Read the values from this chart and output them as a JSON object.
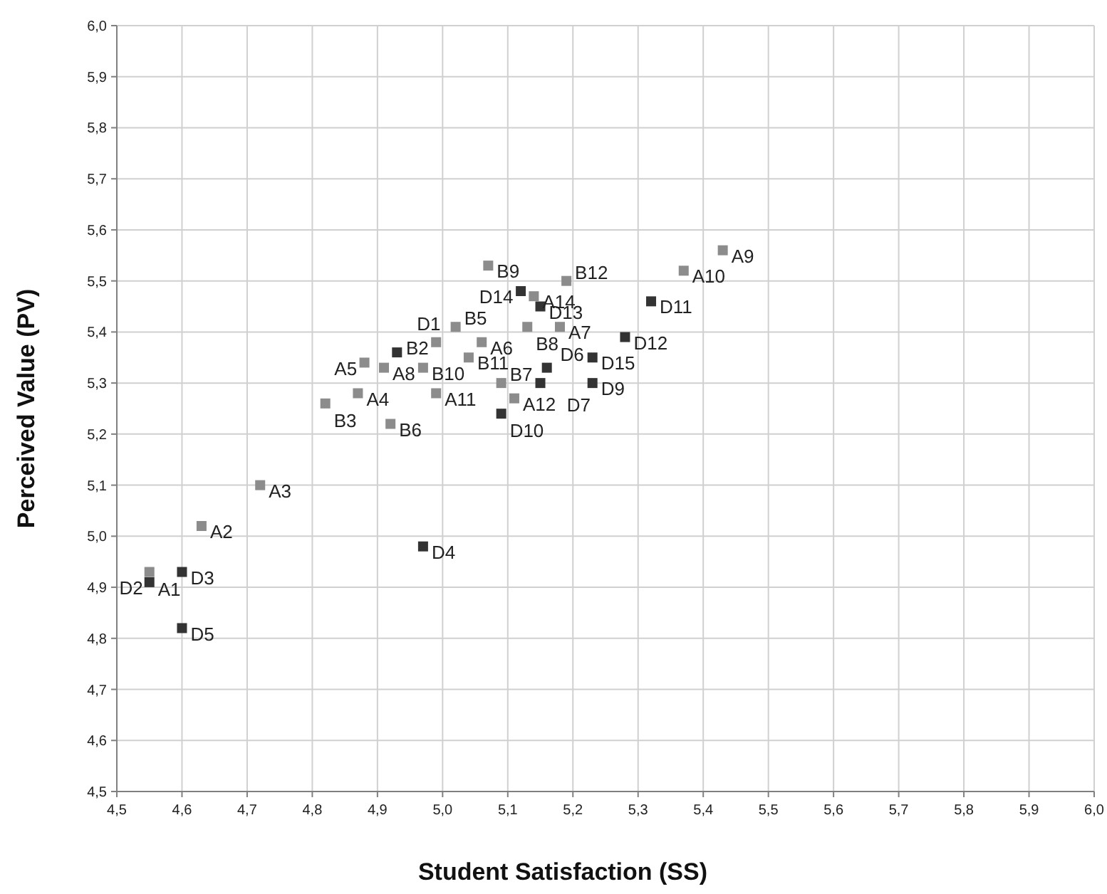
{
  "chart_data": {
    "type": "scatter",
    "xlabel": "Student Satisfaction (SS)",
    "ylabel": "Perceived Value (PV)",
    "xlim": [
      4.5,
      6.0
    ],
    "ylim": [
      4.5,
      6.0
    ],
    "xticks": [
      {
        "value": 4.5,
        "label": "4,5"
      },
      {
        "value": 4.6,
        "label": "4,6"
      },
      {
        "value": 4.7,
        "label": "4,7"
      },
      {
        "value": 4.8,
        "label": "4,8"
      },
      {
        "value": 4.9,
        "label": "4,9"
      },
      {
        "value": 5.0,
        "label": "5,0"
      },
      {
        "value": 5.1,
        "label": "5,1"
      },
      {
        "value": 5.2,
        "label": "5,2"
      },
      {
        "value": 5.3,
        "label": "5,3"
      },
      {
        "value": 5.4,
        "label": "5,4"
      },
      {
        "value": 5.5,
        "label": "5,5"
      },
      {
        "value": 5.6,
        "label": "5,6"
      },
      {
        "value": 5.7,
        "label": "5,7"
      },
      {
        "value": 5.8,
        "label": "5,8"
      },
      {
        "value": 5.9,
        "label": "5,9"
      },
      {
        "value": 6.0,
        "label": "6,0"
      }
    ],
    "yticks": [
      {
        "value": 4.5,
        "label": "4,5"
      },
      {
        "value": 4.6,
        "label": "4,6"
      },
      {
        "value": 4.7,
        "label": "4,7"
      },
      {
        "value": 4.8,
        "label": "4,8"
      },
      {
        "value": 4.9,
        "label": "4,9"
      },
      {
        "value": 5.0,
        "label": "5,0"
      },
      {
        "value": 5.1,
        "label": "5,1"
      },
      {
        "value": 5.2,
        "label": "5,2"
      },
      {
        "value": 5.3,
        "label": "5,3"
      },
      {
        "value": 5.4,
        "label": "5,4"
      },
      {
        "value": 5.5,
        "label": "5,5"
      },
      {
        "value": 5.6,
        "label": "5,6"
      },
      {
        "value": 5.7,
        "label": "5,7"
      },
      {
        "value": 5.8,
        "label": "5,8"
      },
      {
        "value": 5.9,
        "label": "5,9"
      },
      {
        "value": 6.0,
        "label": "6,0"
      }
    ],
    "grid": true,
    "marker": "square",
    "series": [
      {
        "color": "#8c8c8c",
        "x": [
          4.55,
          4.63,
          4.72,
          4.87,
          4.88,
          5.06,
          5.18,
          4.91,
          5.43,
          5.37,
          4.99,
          5.11,
          5.14
        ],
        "values": [
          4.93,
          5.02,
          5.1,
          5.28,
          5.34,
          5.38,
          5.41,
          5.33,
          5.56,
          5.52,
          5.28,
          5.27,
          5.47
        ]
      },
      {
        "color": "#8c8c8c",
        "x": [
          4.99,
          4.82,
          5.02,
          4.92,
          5.09,
          5.13,
          5.07,
          4.97,
          5.04,
          5.19
        ],
        "values": [
          5.38,
          5.26,
          5.41,
          5.22,
          5.3,
          5.41,
          5.53,
          5.33,
          5.35,
          5.5
        ]
      },
      {
        "color": "#333333",
        "x": [
          4.93,
          4.55,
          4.6,
          4.97,
          4.6,
          5.15,
          5.16,
          5.23,
          5.09,
          5.32,
          5.28,
          5.15,
          5.12,
          5.23
        ],
        "values": [
          5.36,
          4.91,
          4.93,
          4.98,
          4.82,
          5.3,
          5.33,
          5.3,
          5.24,
          5.46,
          5.39,
          5.45,
          5.48,
          5.35
        ]
      }
    ],
    "annotations": [
      {
        "text": "A1",
        "x": 4.55,
        "y": 4.93
      },
      {
        "text": "A2",
        "x": 4.63,
        "y": 5.02
      },
      {
        "text": "A3",
        "x": 4.72,
        "y": 5.1
      },
      {
        "text": "A4",
        "x": 4.87,
        "y": 5.28
      },
      {
        "text": "A5",
        "x": 4.88,
        "y": 5.34
      },
      {
        "text": "A6",
        "x": 5.06,
        "y": 5.38
      },
      {
        "text": "A7",
        "x": 5.18,
        "y": 5.41
      },
      {
        "text": "A8",
        "x": 4.91,
        "y": 5.33
      },
      {
        "text": "A9",
        "x": 5.43,
        "y": 5.56
      },
      {
        "text": "A10",
        "x": 5.37,
        "y": 5.52
      },
      {
        "text": "A11",
        "x": 4.99,
        "y": 5.28
      },
      {
        "text": "A12",
        "x": 5.11,
        "y": 5.27
      },
      {
        "text": "A14",
        "x": 5.14,
        "y": 5.47
      },
      {
        "text": "B2",
        "x": 4.99,
        "y": 5.38
      },
      {
        "text": "B3",
        "x": 4.82,
        "y": 5.26
      },
      {
        "text": "B5",
        "x": 5.02,
        "y": 5.41
      },
      {
        "text": "B6",
        "x": 4.92,
        "y": 5.22
      },
      {
        "text": "B7",
        "x": 5.09,
        "y": 5.3
      },
      {
        "text": "B8",
        "x": 5.13,
        "y": 5.41
      },
      {
        "text": "B9",
        "x": 5.07,
        "y": 5.53
      },
      {
        "text": "B10",
        "x": 4.97,
        "y": 5.33
      },
      {
        "text": "B11",
        "x": 5.04,
        "y": 5.35
      },
      {
        "text": "B12",
        "x": 5.19,
        "y": 5.5
      },
      {
        "text": "D1",
        "x": 4.93,
        "y": 5.36
      },
      {
        "text": "D2",
        "x": 4.55,
        "y": 4.91
      },
      {
        "text": "D3",
        "x": 4.6,
        "y": 4.93
      },
      {
        "text": "D4",
        "x": 4.97,
        "y": 4.98
      },
      {
        "text": "D5",
        "x": 4.6,
        "y": 4.82
      },
      {
        "text": "D6",
        "x": 5.15,
        "y": 5.3
      },
      {
        "text": "D7",
        "x": 5.16,
        "y": 5.33
      },
      {
        "text": "D9",
        "x": 5.23,
        "y": 5.3
      },
      {
        "text": "D10",
        "x": 5.09,
        "y": 5.24
      },
      {
        "text": "D11",
        "x": 5.32,
        "y": 5.46
      },
      {
        "text": "D12",
        "x": 5.28,
        "y": 5.39
      },
      {
        "text": "D13",
        "x": 5.15,
        "y": 5.45
      },
      {
        "text": "D14",
        "x": 5.12,
        "y": 5.48
      },
      {
        "text": "D15",
        "x": 5.23,
        "y": 5.35
      }
    ]
  }
}
